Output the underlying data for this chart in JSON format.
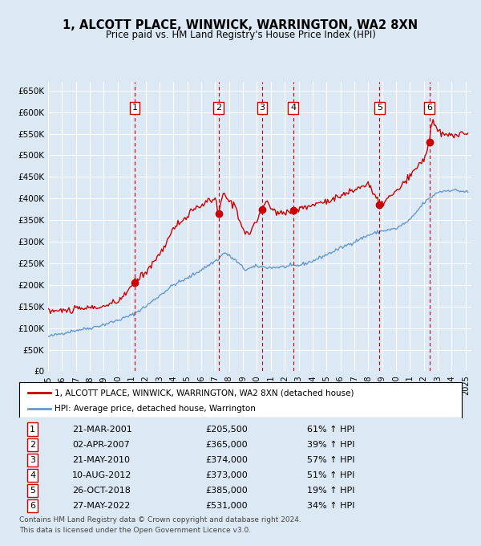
{
  "title": "1, ALCOTT PLACE, WINWICK, WARRINGTON, WA2 8XN",
  "subtitle": "Price paid vs. HM Land Registry's House Price Index (HPI)",
  "legend_label_red": "1, ALCOTT PLACE, WINWICK, WARRINGTON, WA2 8XN (detached house)",
  "legend_label_blue": "HPI: Average price, detached house, Warrington",
  "footer1": "Contains HM Land Registry data © Crown copyright and database right 2024.",
  "footer2": "This data is licensed under the Open Government Licence v3.0.",
  "background_color": "#dce9f5",
  "plot_bg_color": "#dce9f5",
  "grid_color": "#ffffff",
  "red_line_color": "#cc0000",
  "blue_line_color": "#6699cc",
  "sale_marker_color": "#cc0000",
  "dashed_line_color": "#cc0000",
  "sales": [
    {
      "num": 1,
      "date": "2001-03-21",
      "price": 205500,
      "pct": "61% ↑ HPI"
    },
    {
      "num": 2,
      "date": "2007-04-02",
      "price": 365000,
      "pct": "39% ↑ HPI"
    },
    {
      "num": 3,
      "date": "2010-05-21",
      "price": 374000,
      "pct": "57% ↑ HPI"
    },
    {
      "num": 4,
      "date": "2012-08-10",
      "price": 373000,
      "pct": "51% ↑ HPI"
    },
    {
      "num": 5,
      "date": "2018-10-26",
      "price": 385000,
      "pct": "19% ↑ HPI"
    },
    {
      "num": 6,
      "date": "2022-05-27",
      "price": 531000,
      "pct": "34% ↑ HPI"
    }
  ],
  "ylim": [
    0,
    670000
  ],
  "yticks": [
    0,
    50000,
    100000,
    150000,
    200000,
    250000,
    300000,
    350000,
    400000,
    450000,
    500000,
    550000,
    600000,
    650000
  ],
  "ytick_labels": [
    "£0",
    "£50K",
    "£100K",
    "£150K",
    "£200K",
    "£250K",
    "£300K",
    "£350K",
    "£400K",
    "£450K",
    "£500K",
    "£550K",
    "£600K",
    "£650K"
  ]
}
